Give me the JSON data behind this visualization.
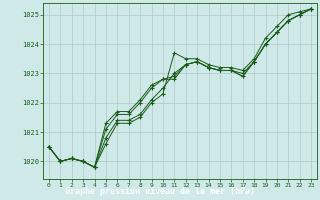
{
  "xlabel": "Graphe pression niveau de la mer (hPa)",
  "xlim": [
    -0.5,
    23.5
  ],
  "ylim": [
    1019.4,
    1025.4
  ],
  "yticks": [
    1020,
    1021,
    1022,
    1023,
    1024,
    1025
  ],
  "xticks": [
    0,
    1,
    2,
    3,
    4,
    5,
    6,
    7,
    8,
    9,
    10,
    11,
    12,
    13,
    14,
    15,
    16,
    17,
    18,
    19,
    20,
    21,
    22,
    23
  ],
  "background_color": "#cfe8e8",
  "label_bg_color": "#2d6e2d",
  "label_text_color": "#ffffff",
  "grid_color": "#b0c8c8",
  "line_color": "#1a5c1a",
  "series": [
    [
      1020.5,
      1020.0,
      1020.1,
      1020.0,
      1019.8,
      1020.6,
      1021.3,
      1021.3,
      1021.5,
      1022.0,
      1022.3,
      1023.7,
      1023.5,
      1023.5,
      1023.3,
      1023.2,
      1023.2,
      1023.1,
      1023.5,
      1024.2,
      1024.6,
      1025.0,
      1025.1,
      1025.2
    ],
    [
      1020.5,
      1020.0,
      1020.1,
      1020.0,
      1019.8,
      1020.8,
      1021.4,
      1021.4,
      1021.6,
      1022.1,
      1022.5,
      1023.0,
      1023.3,
      1023.4,
      1023.2,
      1023.1,
      1023.1,
      1023.0,
      1023.4,
      1024.0,
      1024.4,
      1024.8,
      1025.0,
      1025.2
    ],
    [
      1020.5,
      1020.0,
      1020.1,
      1020.0,
      1019.8,
      1021.1,
      1021.6,
      1021.6,
      1022.0,
      1022.5,
      1022.8,
      1022.8,
      1023.3,
      1023.4,
      1023.2,
      1023.1,
      1023.1,
      1022.9,
      1023.4,
      1024.0,
      1024.4,
      1024.8,
      1025.0,
      1025.2
    ],
    [
      1020.5,
      1020.0,
      1020.1,
      1020.0,
      1019.8,
      1021.3,
      1021.7,
      1021.7,
      1022.1,
      1022.6,
      1022.8,
      1022.9,
      1023.3,
      1023.4,
      1023.2,
      1023.1,
      1023.1,
      1022.9,
      1023.4,
      1024.0,
      1024.4,
      1024.8,
      1025.0,
      1025.2
    ]
  ]
}
